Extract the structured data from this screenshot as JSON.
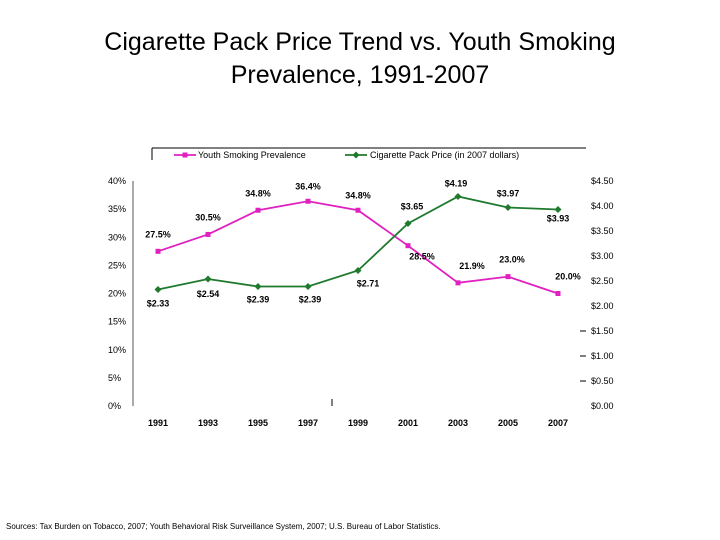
{
  "page": {
    "title_line1": "Cigarette Pack Price Trend vs. Youth Smoking",
    "title_line2": "Prevalence, 1991-2007",
    "source": "Sources:  Tax Burden on Tobacco, 2007; Youth Behavioral Risk Surveillance System, 2007; U.S. Bureau of Labor Statistics."
  },
  "chart_data": {
    "type": "line",
    "title": "Cigarette Pack Price Trend vs. Youth Smoking Prevalence, 1991-2007",
    "categories": [
      "1991",
      "1993",
      "1995",
      "1997",
      "1999",
      "2001",
      "2003",
      "2005",
      "2007"
    ],
    "legend_position": "top",
    "y_left": {
      "range": [
        0,
        40
      ],
      "ticks": [
        0,
        5,
        10,
        15,
        20,
        25,
        30,
        35,
        40
      ],
      "tick_labels": [
        "0%",
        "5%",
        "10%",
        "15%",
        "20%",
        "25%",
        "30%",
        "35%",
        "40%"
      ]
    },
    "y_right": {
      "range": [
        0,
        4.5
      ],
      "ticks": [
        0,
        0.5,
        1.0,
        1.5,
        2.0,
        2.5,
        3.0,
        3.5,
        4.0,
        4.5
      ],
      "tick_labels": [
        "$0.00",
        "$0.50",
        "$1.00",
        "$1.50",
        "$2.00",
        "$2.50",
        "$3.00",
        "$3.50",
        "$4.00",
        "$4.50"
      ]
    },
    "series": [
      {
        "name": "Youth Smoking Prevalence",
        "axis": "left",
        "color": "#e020c0",
        "marker": "square",
        "values": [
          27.5,
          30.5,
          34.8,
          36.4,
          34.8,
          28.5,
          21.9,
          23.0,
          20.0
        ],
        "labels": [
          "27.5%",
          "30.5%",
          "34.8%",
          "36.4%",
          "34.8%",
          "28.5%",
          "21.9%",
          "23.0%",
          "20.0%"
        ]
      },
      {
        "name": "Cigarette Pack Price (in 2007 dollars)",
        "axis": "right",
        "color": "#1f7a2e",
        "marker": "diamond",
        "values": [
          2.33,
          2.54,
          2.39,
          2.39,
          2.71,
          3.65,
          4.19,
          3.97,
          3.93
        ],
        "labels": [
          "$2.33",
          "$2.54",
          "$2.39",
          "$2.39",
          "$2.71",
          "$3.65",
          "$4.19",
          "$3.97",
          "$3.93"
        ]
      }
    ]
  }
}
